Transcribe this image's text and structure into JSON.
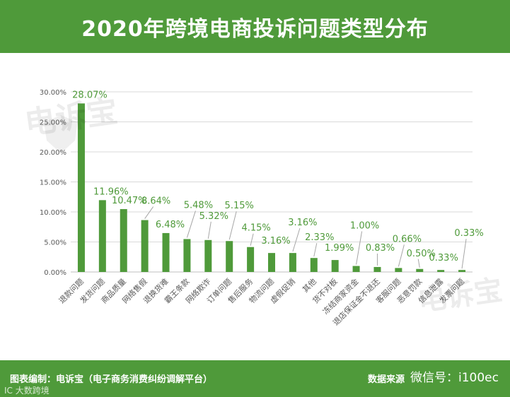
{
  "title": "2020年跨境电商投诉问题类型分布",
  "footer": {
    "credit": "图表编制：电诉宝（电子商务消费纠纷调解平台）",
    "source": "数据来源",
    "wechat": "微信号：i100ec",
    "overlay_watermark": "IC 大数跨境"
  },
  "watermarks": [
    "电诉宝",
    "电诉宝"
  ],
  "colors": {
    "bar": "#4f9a3a",
    "label": "#4f9a3a",
    "header": "#4f9a3a",
    "axis_text": "#595959",
    "grid": "#d9d9d9"
  },
  "chart_data": {
    "type": "bar",
    "title": "2020年跨境电商投诉问题类型分布",
    "xlabel": "",
    "ylabel": "",
    "ylim": [
      0,
      30
    ],
    "yticks": [
      "0.00%",
      "5.00%",
      "10.00%",
      "15.00%",
      "20.00%",
      "25.00%",
      "30.00%"
    ],
    "grid": true,
    "categories": [
      "退款问题",
      "发货问题",
      "商品质量",
      "网络售假",
      "退换货难",
      "霸王条款",
      "网络欺诈",
      "订单问题",
      "售后服务",
      "物流问题",
      "虚假促销",
      "其他",
      "货不对板",
      "冻结商家资金",
      "退店保证金不退还",
      "客服问题",
      "恶意罚款",
      "信息泄露",
      "发票问题"
    ],
    "values": [
      28.07,
      11.96,
      10.47,
      8.64,
      6.48,
      5.48,
      5.32,
      5.15,
      4.15,
      3.16,
      3.16,
      2.33,
      1.99,
      1.0,
      0.83,
      0.66,
      0.5,
      0.33,
      0.33
    ],
    "data_labels": [
      "28.07%",
      "11.96%",
      "10.47%",
      "8.64%",
      "6.48%",
      "5.48%",
      "5.32%",
      "5.15%",
      "4.15%",
      "3.16%",
      "3.16%",
      "2.33%",
      "1.99%",
      "1.00%",
      "0.83%",
      "0.66%",
      "0.50%",
      "0.33%",
      "0.33%"
    ]
  }
}
